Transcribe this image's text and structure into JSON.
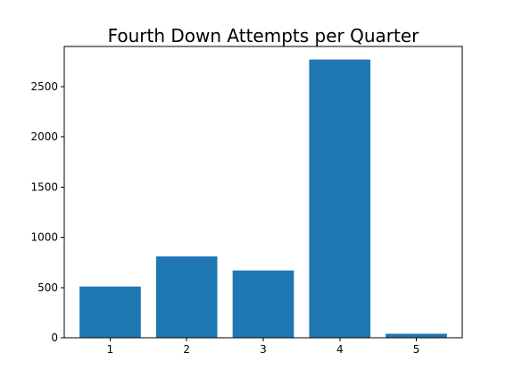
{
  "chart_data": {
    "type": "bar",
    "title": "Fourth Down Attempts per Quarter",
    "xlabel": "",
    "ylabel": "",
    "categories": [
      "1",
      "2",
      "3",
      "4",
      "5"
    ],
    "values": [
      510,
      810,
      670,
      2770,
      40
    ],
    "ylim": [
      0,
      2900
    ],
    "yticks": [
      0,
      500,
      1000,
      1500,
      2000,
      2500
    ],
    "grid": false,
    "bar_color": "#1f77b4"
  }
}
